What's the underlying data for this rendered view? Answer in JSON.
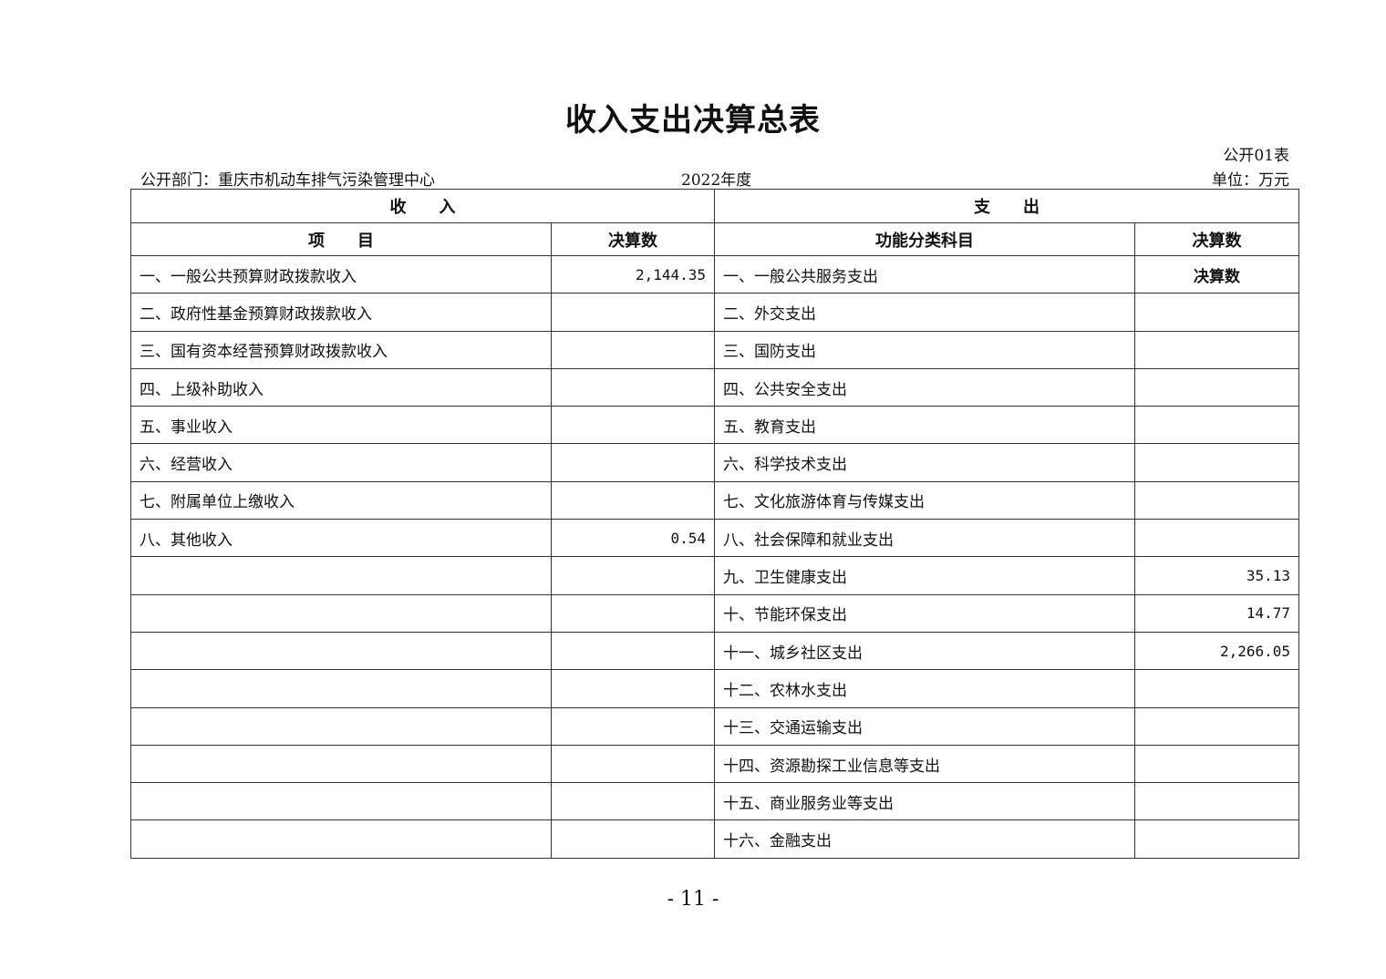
{
  "title": "收入支出决算总表",
  "table_code": "公开01表",
  "department": "公开部门：重庆市机动车排气污染管理中心",
  "year": "2022年度",
  "unit": "单位：万元",
  "headers": {
    "income": "收　　入",
    "expense": "支　　出",
    "income_item": "项　　目",
    "income_amount": "决算数",
    "expense_item": "功能分类科目",
    "expense_amount": "决算数"
  },
  "rows": [
    {
      "income_item": "一、一般公共预算财政拨款收入",
      "income_amount": "2,144.35",
      "expense_item": "一、一般公共服务支出",
      "expense_amount": "决算数"
    },
    {
      "income_item": "二、政府性基金预算财政拨款收入",
      "income_amount": "",
      "expense_item": "二、外交支出",
      "expense_amount": ""
    },
    {
      "income_item": "三、国有资本经营预算财政拨款收入",
      "income_amount": "",
      "expense_item": "三、国防支出",
      "expense_amount": ""
    },
    {
      "income_item": "四、上级补助收入",
      "income_amount": "",
      "expense_item": "四、公共安全支出",
      "expense_amount": ""
    },
    {
      "income_item": "五、事业收入",
      "income_amount": "",
      "expense_item": "五、教育支出",
      "expense_amount": ""
    },
    {
      "income_item": "六、经营收入",
      "income_amount": "",
      "expense_item": "六、科学技术支出",
      "expense_amount": ""
    },
    {
      "income_item": "七、附属单位上缴收入",
      "income_amount": "",
      "expense_item": "七、文化旅游体育与传媒支出",
      "expense_amount": ""
    },
    {
      "income_item": "八、其他收入",
      "income_amount": "0.54",
      "expense_item": "八、社会保障和就业支出",
      "expense_amount": ""
    },
    {
      "income_item": "",
      "income_amount": "",
      "expense_item": "九、卫生健康支出",
      "expense_amount": "35.13"
    },
    {
      "income_item": "",
      "income_amount": "",
      "expense_item": "十、节能环保支出",
      "expense_amount": "14.77"
    },
    {
      "income_item": "",
      "income_amount": "",
      "expense_item": "十一、城乡社区支出",
      "expense_amount": "2,266.05"
    },
    {
      "income_item": "",
      "income_amount": "",
      "expense_item": "十二、农林水支出",
      "expense_amount": ""
    },
    {
      "income_item": "",
      "income_amount": "",
      "expense_item": "十三、交通运输支出",
      "expense_amount": ""
    },
    {
      "income_item": "",
      "income_amount": "",
      "expense_item": "十四、资源勘探工业信息等支出",
      "expense_amount": ""
    },
    {
      "income_item": "",
      "income_amount": "",
      "expense_item": "十五、商业服务业等支出",
      "expense_amount": ""
    },
    {
      "income_item": "",
      "income_amount": "",
      "expense_item": "十六、金融支出",
      "expense_amount": ""
    }
  ],
  "page_number": "- 11 -"
}
